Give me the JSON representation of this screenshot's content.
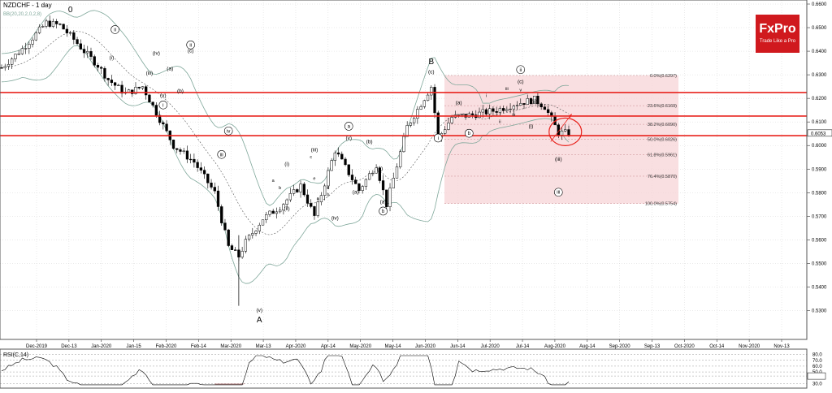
{
  "header": {
    "title": "NZDCHF - 1 day",
    "indicator": "BB(20,20,2,0,2,8)"
  },
  "logo": {
    "brand": "FxPro",
    "tagline": "Trade Like a Pro",
    "color": "#d0191e"
  },
  "colors": {
    "hline": "#e8231d",
    "fib_zone": "#f7d4d7",
    "bollinger": "#7fa79a",
    "candle": "#000000",
    "ellipse": "#e8231d"
  },
  "chart_data": {
    "type": "candlestick",
    "price_axis": {
      "ylim": [
        0.525,
        0.66
      ],
      "ticks": [
        "0.6600",
        "0.6500",
        "0.6400",
        "0.6300",
        "0.6200",
        "0.6100",
        "0.6000",
        "0.5900",
        "0.5800",
        "0.5700",
        "0.5600",
        "0.5500",
        "0.5400",
        "0.5300"
      ],
      "current": "0.6053"
    },
    "time_axis": {
      "labels": [
        "Dec-2019",
        "Dec-13",
        "Jan-2020",
        "Jan-15",
        "Feb-2020",
        "Feb-14",
        "Mar-2020",
        "Mar-13",
        "Apr-2020",
        "Apr-14",
        "May-2020",
        "May-14",
        "Jun-2020",
        "Jun-14",
        "Jul-2020",
        "Jul-14",
        "Aug-2020",
        "Aug-14",
        "Sep-2020",
        "Sep-13",
        "Oct-2020",
        "Oct-14",
        "Nov-2020",
        "Nov-13"
      ]
    },
    "horizontal_levels": [
      0.6225,
      0.6125,
      0.6042
    ],
    "path": [
      [
        0,
        0.633
      ],
      [
        6,
        0.641
      ],
      [
        13,
        0.652
      ],
      [
        17,
        0.651
      ],
      [
        21,
        0.645
      ],
      [
        24,
        0.64
      ],
      [
        28,
        0.634
      ],
      [
        31,
        0.628
      ],
      [
        36,
        0.622
      ],
      [
        41,
        0.625
      ],
      [
        45,
        0.614
      ],
      [
        50,
        0.6
      ],
      [
        56,
        0.593
      ],
      [
        62,
        0.58
      ],
      [
        66,
        0.557
      ],
      [
        69,
        0.553
      ],
      [
        71,
        0.559
      ],
      [
        76,
        0.569
      ],
      [
        81,
        0.574
      ],
      [
        87,
        0.583
      ],
      [
        91,
        0.57
      ],
      [
        97,
        0.598
      ],
      [
        104,
        0.581
      ],
      [
        109,
        0.592
      ],
      [
        112,
        0.575
      ],
      [
        118,
        0.608
      ],
      [
        125,
        0.625
      ],
      [
        127,
        0.603
      ],
      [
        131,
        0.612
      ],
      [
        137,
        0.613
      ],
      [
        144,
        0.615
      ],
      [
        149,
        0.6175
      ],
      [
        155,
        0.6195
      ],
      [
        158,
        0.6165
      ],
      [
        162,
        0.6055
      ],
      [
        165,
        0.6053
      ]
    ],
    "point_span": 165,
    "fibonacci": {
      "levels": [
        {
          "label": "0.0%(0.6297)",
          "value": 0.6297
        },
        {
          "label": "23.6%(0.6169)",
          "value": 0.6169
        },
        {
          "label": "38.2%(0.6090)",
          "value": 0.609
        },
        {
          "label": "50.0%(0.6026)",
          "value": 0.6026
        },
        {
          "label": "61.8%(0.5961)",
          "value": 0.5961
        },
        {
          "label": "76.4%(0.5870)",
          "value": 0.587
        },
        {
          "label": "100.0%(0.5754)",
          "value": 0.5754
        }
      ]
    },
    "wave_labels": [
      {
        "text": "0",
        "t": 20,
        "p": 0.6565,
        "style": "plain-big"
      },
      {
        "text": "A",
        "t": 75,
        "p": 0.525,
        "style": "plain-big"
      },
      {
        "text": "B",
        "t": 125,
        "p": 0.6345,
        "style": "plain-big"
      },
      {
        "text": "ii",
        "t": 33,
        "p": 0.6485,
        "style": "circle"
      },
      {
        "text": "i",
        "t": 32,
        "p": 0.6365,
        "style": "paren"
      },
      {
        "text": "iv",
        "t": 45,
        "p": 0.6385,
        "style": "paren"
      },
      {
        "text": "iii",
        "t": 43,
        "p": 0.63,
        "style": "paren"
      },
      {
        "text": "a",
        "t": 49,
        "p": 0.632,
        "style": "paren"
      },
      {
        "text": "c",
        "t": 55,
        "p": 0.6395,
        "style": "paren"
      },
      {
        "text": "ii",
        "t": 55,
        "p": 0.642,
        "style": "circle"
      },
      {
        "text": "b",
        "t": 52,
        "p": 0.6225,
        "style": "paren"
      },
      {
        "text": "v",
        "t": 47,
        "p": 0.6205,
        "style": "paren"
      },
      {
        "text": "i",
        "t": 47,
        "p": 0.6165,
        "style": "circle"
      },
      {
        "text": "iv",
        "t": 66,
        "p": 0.6055,
        "style": "circle"
      },
      {
        "text": "iii",
        "t": 64,
        "p": 0.5955,
        "style": "circle"
      },
      {
        "text": "v",
        "t": 75,
        "p": 0.5295,
        "style": "paren"
      },
      {
        "text": "iii",
        "t": 91,
        "p": 0.5975,
        "style": "paren"
      },
      {
        "text": "i",
        "t": 83,
        "p": 0.5915,
        "style": "paren"
      },
      {
        "text": "ii",
        "t": 83,
        "p": 0.5725,
        "style": "paren"
      },
      {
        "text": "iv",
        "t": 97,
        "p": 0.5685,
        "style": "paren"
      },
      {
        "text": "v",
        "t": 101,
        "p": 0.6025,
        "style": "paren"
      },
      {
        "text": "a",
        "t": 101,
        "p": 0.6075,
        "style": "circle"
      },
      {
        "text": "a",
        "t": 103,
        "p": 0.5795,
        "style": "paren"
      },
      {
        "text": "b",
        "t": 107,
        "p": 0.601,
        "style": "paren"
      },
      {
        "text": "c",
        "t": 110,
        "p": 0.5895,
        "style": "paren"
      },
      {
        "text": "b",
        "t": 111,
        "p": 0.5715,
        "style": "circle"
      },
      {
        "text": "a",
        "t": 111,
        "p": 0.5755,
        "style": "paren"
      },
      {
        "text": "a",
        "t": 79,
        "p": 0.5845,
        "style": "plain"
      },
      {
        "text": "b",
        "t": 81,
        "p": 0.5815,
        "style": "plain"
      },
      {
        "text": "c",
        "t": 90,
        "p": 0.5945,
        "style": "plain"
      },
      {
        "text": "e",
        "t": 91,
        "p": 0.5855,
        "style": "plain"
      },
      {
        "text": "d",
        "t": 95,
        "p": 0.5815,
        "style": "plain"
      },
      {
        "text": "a",
        "t": 92,
        "p": 0.577,
        "style": "plain"
      },
      {
        "text": "b",
        "t": 95,
        "p": 0.5785,
        "style": "plain"
      },
      {
        "text": "c",
        "t": 125,
        "p": 0.6305,
        "style": "paren"
      },
      {
        "text": "i",
        "t": 127,
        "p": 0.6025,
        "style": "circle"
      },
      {
        "text": "a",
        "t": 133,
        "p": 0.6175,
        "style": "paren"
      },
      {
        "text": "b",
        "t": 136,
        "p": 0.6045,
        "style": "circle"
      },
      {
        "text": "ii",
        "t": 151,
        "p": 0.6315,
        "style": "circle"
      },
      {
        "text": "c",
        "t": 151,
        "p": 0.6265,
        "style": "paren"
      },
      {
        "text": "i",
        "t": 141,
        "p": 0.6205,
        "style": "plain"
      },
      {
        "text": "iii",
        "t": 147,
        "p": 0.6235,
        "style": "plain"
      },
      {
        "text": "ii",
        "t": 145,
        "p": 0.6095,
        "style": "plain"
      },
      {
        "text": "iv",
        "t": 149,
        "p": 0.6125,
        "style": "plain"
      },
      {
        "text": "v",
        "t": 151,
        "p": 0.623,
        "style": "plain"
      },
      {
        "text": "ii",
        "t": 155,
        "p": 0.618,
        "style": "paren"
      },
      {
        "text": "i",
        "t": 154,
        "p": 0.6075,
        "style": "paren"
      },
      {
        "text": "iii",
        "t": 162,
        "p": 0.5935,
        "style": "paren"
      },
      {
        "text": "iii",
        "t": 162,
        "p": 0.5795,
        "style": "circle"
      }
    ],
    "rsi": {
      "title": "RSI(C,14)",
      "ticks": [
        "80.0",
        "70.0",
        "60.0",
        "50.0",
        "43.0",
        "30.0"
      ],
      "current": "43.0"
    }
  }
}
